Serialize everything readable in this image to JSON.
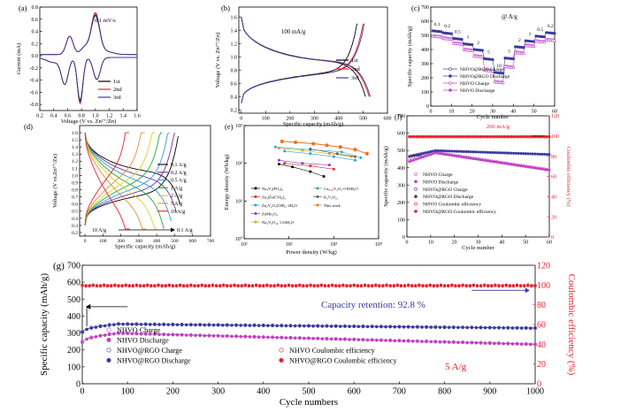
{
  "panels": {
    "a": {
      "letter": "(a)",
      "type": "line",
      "xlabel": "Voltage (V vs. Zn²⁺/Zn)",
      "ylabel": "Current (mA)",
      "annotation": "0.1 mV/s",
      "xlim": [
        0.2,
        1.6
      ],
      "ylim": [
        -0.9,
        0.8
      ],
      "xticks": [
        "0.2",
        "0.4",
        "0.6",
        "0.8",
        "1.0",
        "1.2",
        "1.4",
        "1.6"
      ],
      "xtickvals": [
        0.2,
        0.4,
        0.6,
        0.8,
        1.0,
        1.2,
        1.4,
        1.6
      ],
      "yticks": [
        "-0.8",
        "-0.6",
        "-0.4",
        "-0.2",
        "0.0",
        "0.2",
        "0.4",
        "0.6",
        "0.8"
      ],
      "ytickvals": [
        -0.8,
        -0.6,
        -0.4,
        -0.2,
        0.0,
        0.2,
        0.4,
        0.6,
        0.8
      ],
      "legend": [
        "1st",
        "2nd",
        "3rd"
      ],
      "colors": [
        "#000000",
        "#e8202a",
        "#3a3a9e"
      ]
    },
    "b": {
      "letter": "(b)",
      "type": "line",
      "xlabel": "Specific capacity (mAh/g)",
      "ylabel": "Voltage (V vs. Zn²⁺/Zn)",
      "annotation": "100 mA/g",
      "xlim": [
        -10,
        600
      ],
      "ylim": [
        0.15,
        1.75
      ],
      "xticks": [
        "0",
        "100",
        "200",
        "300",
        "400",
        "500",
        "600"
      ],
      "xtickvals": [
        0,
        100,
        200,
        300,
        400,
        500,
        600
      ],
      "yticks": [
        "0.2",
        "0.4",
        "0.6",
        "0.8",
        "1.0",
        "1.2",
        "1.4",
        "1.6"
      ],
      "ytickvals": [
        0.2,
        0.4,
        0.6,
        0.8,
        1.0,
        1.2,
        1.4,
        1.6
      ],
      "legend": [
        "1st",
        "2nd",
        "3rd"
      ],
      "colors": [
        "#000000",
        "#e8202a",
        "#3a3a9e"
      ]
    },
    "c": {
      "letter": "(c)",
      "type": "scatter",
      "xlabel": "Cycle number",
      "ylabel": "Specific capacity (mAh/g)",
      "annotation": "@ A/g",
      "xlim": [
        0,
        60
      ],
      "ylim": [
        0,
        700
      ],
      "xticks": [
        "0",
        "10",
        "20",
        "30",
        "40",
        "50",
        "60"
      ],
      "xtickvals": [
        0,
        10,
        20,
        30,
        40,
        50,
        60
      ],
      "yticks": [
        "0",
        "100",
        "200",
        "300",
        "400",
        "500",
        "600",
        "700"
      ],
      "ytickvals": [
        0,
        100,
        200,
        300,
        400,
        500,
        600,
        700
      ],
      "rate_labels": [
        "0.1",
        "0.2",
        "0.5",
        "1",
        "2",
        "5",
        "10",
        "5",
        "2",
        "1",
        "0.5",
        "0.2"
      ],
      "rate_steps": [
        {
          "from": 1,
          "to": 5,
          "rgo": 532,
          "nhvo": 505
        },
        {
          "from": 6,
          "to": 10,
          "rgo": 518,
          "nhvo": 490
        },
        {
          "from": 11,
          "to": 15,
          "rgo": 478,
          "nhvo": 455
        },
        {
          "from": 16,
          "to": 20,
          "rgo": 440,
          "nhvo": 410
        },
        {
          "from": 21,
          "to": 25,
          "rgo": 400,
          "nhvo": 365
        },
        {
          "from": 26,
          "to": 30,
          "rgo": 335,
          "nhvo": 265
        },
        {
          "from": 31,
          "to": 35,
          "rgo": 238,
          "nhvo": 182
        },
        {
          "from": 36,
          "to": 40,
          "rgo": 340,
          "nhvo": 290
        },
        {
          "from": 41,
          "to": 45,
          "rgo": 420,
          "nhvo": 390
        },
        {
          "from": 46,
          "to": 50,
          "rgo": 462,
          "nhvo": 440
        },
        {
          "from": 51,
          "to": 55,
          "rgo": 495,
          "nhvo": 470
        },
        {
          "from": 56,
          "to": 60,
          "rgo": 520,
          "nhvo": 480
        }
      ],
      "legend": [
        "NHVO@RGO Charge",
        "NHVO@RGO Discharge",
        "NHVO Charge",
        "NHVO Discharge"
      ],
      "colors": [
        "#3a3a9e",
        "#3a3a9e",
        "#c040c0",
        "#c040c0"
      ]
    },
    "d": {
      "letter": "(d)",
      "type": "line",
      "xlabel": "Specific capacity (mAh/g)",
      "ylabel": "Voltage (V vs.Zn²⁺/Zn)",
      "xlim": [
        -30,
        700
      ],
      "ylim": [
        0.15,
        1.7
      ],
      "xticks": [
        "0",
        "100",
        "200",
        "300",
        "400",
        "500",
        "600",
        "700"
      ],
      "xtickvals": [
        0,
        100,
        200,
        300,
        400,
        500,
        600,
        700
      ],
      "yticks": [
        "0.2",
        "0.3",
        "0.4",
        "0.5",
        "0.6",
        "0.7",
        "0.8",
        "0.9",
        "1.0",
        "1.1",
        "1.2",
        "1.3",
        "1.4",
        "1.5",
        "1.6"
      ],
      "ytickvals": [
        0.2,
        0.3,
        0.4,
        0.5,
        0.6,
        0.7,
        0.8,
        0.9,
        1.0,
        1.1,
        1.2,
        1.3,
        1.4,
        1.5,
        1.6
      ],
      "legend": [
        "0.1 A/g",
        "0.2 A/g",
        "0.5 A/g",
        "1 A/g",
        "2 A/g",
        "5 A/g",
        "10 A/g"
      ],
      "colors": [
        "#000000",
        "#7030a0",
        "#2e9ae0",
        "#28a838",
        "#e0d020",
        "#e09030",
        "#e8202a"
      ],
      "capacities": [
        530,
        510,
        480,
        440,
        400,
        340,
        250
      ],
      "arrow_left": "10 A/g",
      "arrow_right": "0.1 A/g"
    },
    "e": {
      "letter": "(e)",
      "type": "scatter",
      "xlabel": "Power density (W/kg)",
      "ylabel": "Energy density (Wh/kg)",
      "xlim_log": [
        1,
        4
      ],
      "ylim_log": [
        0,
        3
      ],
      "xticks": [
        "10¹",
        "10²",
        "10³",
        "10⁴"
      ],
      "yticks": [
        "10⁰",
        "10¹",
        "10²",
        "10³"
      ],
      "legend": [
        "Na₃V₂(PO₄)₃",
        "Zn₃[Fe(CN)₆]₂",
        "Zn₂V₂O₇(OH)₂·2H₂O",
        "ZnMn₂O₄",
        "Na₂V₆O₁₆·1.63H₂O",
        "Ca₀.₂₅V₂O₅·0.83H₂O",
        "K₂V₈O₂₁",
        "This work"
      ],
      "colors": [
        "#000000",
        "#e8202a",
        "#2e9ae0",
        "#8040c0",
        "#e0a020",
        "#20b0b0",
        "#606060",
        "#f07020"
      ]
    },
    "f": {
      "letter": "(f)",
      "type": "scatter",
      "xlabel": "Cycle number",
      "ylabel": "Specific capacity (mAh/g)",
      "y2label": "Coulombic efficiency (%)",
      "annotation": "200 mA/g",
      "xlim": [
        0,
        60
      ],
      "ylim": [
        0,
        700
      ],
      "y2lim": [
        0,
        120
      ],
      "xticks": [
        "0",
        "10",
        "20",
        "30",
        "40",
        "50",
        "60"
      ],
      "xtickvals": [
        0,
        10,
        20,
        30,
        40,
        50,
        60
      ],
      "yticks": [
        "0",
        "100",
        "200",
        "300",
        "400",
        "500",
        "600",
        "700"
      ],
      "ytickvals": [
        0,
        100,
        200,
        300,
        400,
        500,
        600,
        700
      ],
      "y2ticks": [
        "0",
        "20",
        "40",
        "60",
        "80",
        "100",
        "120"
      ],
      "y2tickvals": [
        0,
        20,
        40,
        60,
        80,
        100,
        120
      ],
      "legend": [
        "NHVO Charge",
        "NHVO Discharge",
        "NHVO@RGO Charge",
        "NHVO@RGO Discharge",
        "NHVO Coulombic efficiency",
        "NHVO@RGO Coulombic efficiency"
      ],
      "colors": [
        "#c040c0",
        "#c040c0",
        "#3a3a9e",
        "#3a3a9e",
        "#e8202a",
        "#e8202a"
      ]
    },
    "g": {
      "letter": "(g)",
      "type": "scatter",
      "xlabel": "Cycle numbers",
      "ylabel": "Specific capacity  (mAh/g)",
      "y2label": "Coulombic efficiency (%)",
      "annotation": "Capacity retention: 92.8 %",
      "rate": "5 A/g",
      "xlim": [
        0,
        1000
      ],
      "ylim": [
        0,
        700
      ],
      "y2lim": [
        0,
        120
      ],
      "xticks": [
        "0",
        "100",
        "200",
        "300",
        "400",
        "500",
        "600",
        "700",
        "800",
        "900",
        "1000"
      ],
      "xtickvals": [
        0,
        100,
        200,
        300,
        400,
        500,
        600,
        700,
        800,
        900,
        1000
      ],
      "yticks": [
        "0",
        "100",
        "200",
        "300",
        "400",
        "500",
        "600",
        "700"
      ],
      "ytickvals": [
        0,
        100,
        200,
        300,
        400,
        500,
        600,
        700
      ],
      "y2ticks": [
        "0",
        "20",
        "40",
        "60",
        "80",
        "100",
        "120"
      ],
      "y2tickvals": [
        0,
        20,
        40,
        60,
        80,
        100,
        120
      ],
      "legend": [
        "NHVO Charge",
        "NHVO Discharge",
        "NHVO@RGO Charge",
        "NHVO@RGO Discharge",
        "NHVO Coulombic efficiency",
        "NHVO@RGO Coulombic efficiency"
      ],
      "colors": [
        "#c040c0",
        "#c040c0",
        "#3a3a9e",
        "#3a3a9e",
        "#e8202a",
        "#e8202a"
      ]
    }
  },
  "chart_data": [
    {
      "panel": "a",
      "type": "line",
      "title": "",
      "xlabel": "Voltage (V vs. Zn²⁺/Zn)",
      "ylabel": "Current (mA)",
      "xlim": [
        0.2,
        1.6
      ],
      "ylim": [
        -0.9,
        0.8
      ],
      "series": [
        {
          "name": "1st",
          "x": [
            0.3,
            0.45,
            0.55,
            0.62,
            0.7,
            0.78,
            0.85,
            0.95,
            1.0,
            1.05,
            1.2,
            1.4,
            1.55
          ],
          "y_anodic": [
            0.0,
            0.05,
            0.12,
            0.35,
            0.25,
            0.2,
            0.3,
            0.62,
            0.58,
            0.4,
            0.12,
            0.05,
            0.02
          ],
          "y_cathodic": [
            -0.08,
            -0.2,
            -0.46,
            -0.38,
            -0.45,
            -0.72,
            -0.3,
            -0.2,
            -0.42,
            -0.2,
            -0.08,
            -0.03,
            0.0
          ]
        },
        {
          "name": "2nd",
          "x": [
            0.3,
            0.45,
            0.55,
            0.62,
            0.7,
            0.78,
            0.85,
            0.95,
            1.0,
            1.05,
            1.2,
            1.4,
            1.55
          ],
          "y_anodic": [
            0.0,
            0.05,
            0.12,
            0.33,
            0.25,
            0.2,
            0.32,
            0.68,
            0.62,
            0.42,
            0.12,
            0.05,
            0.02
          ],
          "y_cathodic": [
            -0.08,
            -0.2,
            -0.45,
            -0.38,
            -0.45,
            -0.8,
            -0.32,
            -0.2,
            -0.4,
            -0.2,
            -0.08,
            -0.03,
            0.0
          ]
        },
        {
          "name": "3rd",
          "x": [
            0.3,
            0.45,
            0.55,
            0.62,
            0.7,
            0.78,
            0.85,
            0.95,
            1.0,
            1.05,
            1.2,
            1.4,
            1.55
          ],
          "y_anodic": [
            0.0,
            0.05,
            0.12,
            0.33,
            0.25,
            0.2,
            0.3,
            0.66,
            0.6,
            0.42,
            0.12,
            0.05,
            0.02
          ],
          "y_cathodic": [
            -0.08,
            -0.2,
            -0.45,
            -0.38,
            -0.45,
            -0.75,
            -0.32,
            -0.2,
            -0.4,
            -0.2,
            -0.08,
            -0.03,
            0.0
          ]
        }
      ]
    },
    {
      "panel": "b",
      "type": "line",
      "xlabel": "Specific capacity (mAh/g)",
      "ylabel": "Voltage (V vs. Zn²⁺/Zn)",
      "xlim": [
        -10,
        600
      ],
      "ylim": [
        0.15,
        1.75
      ],
      "series": [
        {
          "name": "1st",
          "discharge_capacity": 510,
          "charge_capacity": 475
        },
        {
          "name": "2nd",
          "discharge_capacity": 525,
          "charge_capacity": 500
        },
        {
          "name": "3rd",
          "discharge_capacity": 530,
          "charge_capacity": 505
        }
      ]
    },
    {
      "panel": "c",
      "type": "scatter",
      "xlabel": "Cycle number",
      "ylabel": "Specific capacity (mAh/g)",
      "xlim": [
        0,
        60
      ],
      "ylim": [
        0,
        700
      ],
      "rates": [
        "0.1",
        "0.2",
        "0.5",
        "1",
        "2",
        "5",
        "10",
        "5",
        "2",
        "1",
        "0.5",
        "0.2"
      ],
      "series": [
        {
          "name": "NHVO@RGO Charge",
          "values": [
            532,
            518,
            478,
            440,
            400,
            335,
            238,
            340,
            420,
            462,
            495,
            520
          ]
        },
        {
          "name": "NHVO@RGO Discharge",
          "values": [
            530,
            516,
            476,
            438,
            398,
            333,
            236,
            338,
            418,
            460,
            493,
            518
          ]
        },
        {
          "name": "NHVO Charge",
          "values": [
            505,
            490,
            455,
            410,
            365,
            265,
            182,
            290,
            390,
            440,
            470,
            480
          ]
        },
        {
          "name": "NHVO Discharge",
          "values": [
            503,
            488,
            453,
            408,
            363,
            263,
            180,
            288,
            388,
            438,
            468,
            478
          ]
        }
      ]
    },
    {
      "panel": "d",
      "type": "line",
      "xlabel": "Specific capacity (mAh/g)",
      "ylabel": "Voltage (V vs.Zn²⁺/Zn)",
      "series": [
        {
          "name": "0.1 A/g",
          "capacity": 530
        },
        {
          "name": "0.2 A/g",
          "capacity": 510
        },
        {
          "name": "0.5 A/g",
          "capacity": 480
        },
        {
          "name": "1 A/g",
          "capacity": 440
        },
        {
          "name": "2 A/g",
          "capacity": 400
        },
        {
          "name": "5 A/g",
          "capacity": 340
        },
        {
          "name": "10 A/g",
          "capacity": 250
        }
      ]
    },
    {
      "panel": "e",
      "type": "scatter",
      "xlabel": "Power density (W/kg)",
      "ylabel": "Energy density (Wh/kg)",
      "xscale": "log",
      "yscale": "log",
      "series": [
        {
          "name": "Na₃V₂(PO₄)₃",
          "x": [
            60,
            120,
            300,
            600
          ],
          "y": [
            95,
            80,
            60,
            45
          ]
        },
        {
          "name": "Zn₃[Fe(CN)₆]₂",
          "x": [
            80,
            300,
            1000
          ],
          "y": [
            100,
            85,
            70
          ]
        },
        {
          "name": "Zn₂V₂O₇(OH)₂·2H₂O",
          "x": [
            80,
            300,
            1000,
            3000
          ],
          "y": [
            210,
            180,
            150,
            120
          ]
        },
        {
          "name": "ZnMn₂O₄",
          "x": [
            60,
            200,
            800
          ],
          "y": [
            120,
            100,
            90
          ]
        },
        {
          "name": "Na₂V₆O₁₆·1.63H₂O",
          "x": [
            60,
            200,
            800,
            2500
          ],
          "y": [
            250,
            220,
            180,
            150
          ]
        },
        {
          "name": "Ca₀.₂₅V₂O₅·0.83H₂O",
          "x": [
            50,
            300,
            1500,
            4000
          ],
          "y": [
            270,
            230,
            200,
            140
          ]
        },
        {
          "name": "K₂V₈O₂₁",
          "x": [
            300,
            1200,
            3000
          ],
          "y": [
            240,
            180,
            150
          ]
        },
        {
          "name": "This work",
          "x": [
            70,
            140,
            350,
            700,
            1400,
            3000,
            5500
          ],
          "y": [
            380,
            360,
            330,
            300,
            270,
            230,
            180
          ]
        }
      ]
    },
    {
      "panel": "f",
      "type": "scatter",
      "xlabel": "Cycle number",
      "ylabel": "Specific capacity (mAh/g)",
      "y2label": "Coulombic efficiency (%)",
      "series": [
        {
          "name": "NHVO Charge",
          "start": 440,
          "peak": 490,
          "end": 390
        },
        {
          "name": "NHVO Discharge",
          "start": 430,
          "peak": 485,
          "end": 385
        },
        {
          "name": "NHVO@RGO Charge",
          "start": 465,
          "peak": 500,
          "end": 478
        },
        {
          "name": "NHVO@RGO Discharge",
          "start": 460,
          "peak": 498,
          "end": 476
        },
        {
          "name": "NHVO Coulombic efficiency",
          "value": 99
        },
        {
          "name": "NHVO@RGO Coulombic efficiency",
          "value": 100
        }
      ]
    },
    {
      "panel": "g",
      "type": "scatter",
      "xlabel": "Cycle numbers",
      "ylabel": "Specific capacity  (mAh/g)",
      "y2label": "Coulombic efficiency (%)",
      "series": [
        {
          "name": "NHVO Charge",
          "start": 250,
          "peak": 300,
          "end": 235
        },
        {
          "name": "NHVO Discharge",
          "start": 245,
          "peak": 298,
          "end": 232
        },
        {
          "name": "NHVO@RGO Charge",
          "start": 310,
          "peak": 355,
          "end": 330
        },
        {
          "name": "NHVO@RGO Discharge",
          "start": 305,
          "peak": 352,
          "end": 328
        },
        {
          "name": "NHVO Coulombic efficiency",
          "value": 99
        },
        {
          "name": "NHVO@RGO Coulombic efficiency",
          "value": 100
        }
      ]
    }
  ]
}
